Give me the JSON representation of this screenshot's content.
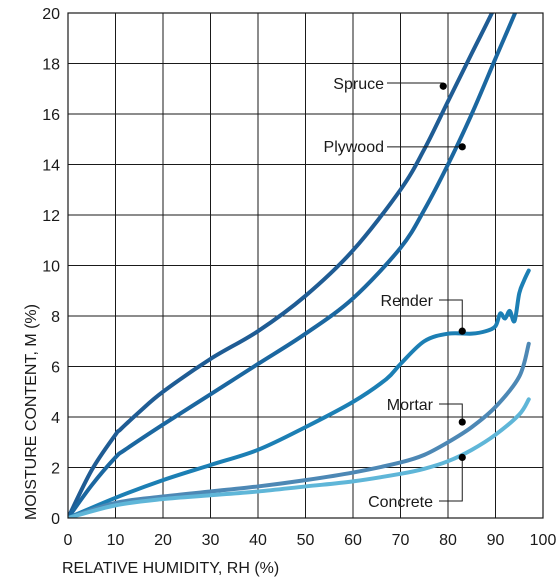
{
  "chart_data": {
    "type": "line",
    "xlabel": "RELATIVE HUMIDITY, RH (%)",
    "ylabel": "MOISTURE CONTENT, M (%)",
    "xlim": [
      0,
      100
    ],
    "ylim": [
      0,
      20
    ],
    "x_ticks": [
      0,
      10,
      20,
      30,
      40,
      50,
      60,
      70,
      80,
      90,
      100
    ],
    "y_ticks": [
      0,
      2,
      4,
      6,
      8,
      10,
      12,
      14,
      16,
      18,
      20
    ],
    "grid": true,
    "series": [
      {
        "name": "Spruce",
        "color": "#1f5c94",
        "x": [
          0,
          5,
          10,
          11,
          15,
          20,
          30,
          40,
          50,
          60,
          70,
          75,
          80,
          85,
          90,
          92.5
        ],
        "y": [
          0,
          1.9,
          3.3,
          3.5,
          4.2,
          5.0,
          6.3,
          7.4,
          8.8,
          10.6,
          13.0,
          14.6,
          16.5,
          18.4,
          20.3,
          21.5
        ]
      },
      {
        "name": "Plywood",
        "color": "#1b67a0",
        "x": [
          0,
          5,
          10,
          12,
          20,
          30,
          40,
          50,
          60,
          70,
          75,
          80,
          85,
          90,
          95,
          97
        ],
        "y": [
          0,
          1.3,
          2.4,
          2.7,
          3.7,
          4.9,
          6.1,
          7.3,
          8.7,
          10.7,
          12.2,
          14.0,
          16.0,
          18.2,
          20.4,
          21.5
        ]
      },
      {
        "name": "Render",
        "color": "#1c7fb4",
        "x": [
          0,
          10,
          20,
          30,
          40,
          50,
          60,
          67,
          70,
          75,
          80,
          85,
          88,
          90,
          91,
          92,
          93,
          94,
          95,
          96,
          97
        ],
        "y": [
          0,
          0.8,
          1.5,
          2.1,
          2.7,
          3.6,
          4.6,
          5.5,
          6.1,
          7.0,
          7.3,
          7.3,
          7.4,
          7.6,
          8.1,
          7.9,
          8.2,
          7.8,
          8.9,
          9.4,
          9.8
        ]
      },
      {
        "name": "Mortar",
        "color": "#4d88b5",
        "x": [
          0,
          10,
          20,
          30,
          40,
          50,
          60,
          70,
          75,
          80,
          85,
          90,
          95,
          97
        ],
        "y": [
          0,
          0.6,
          0.85,
          1.05,
          1.25,
          1.5,
          1.8,
          2.2,
          2.5,
          3.0,
          3.6,
          4.4,
          5.6,
          6.9
        ]
      },
      {
        "name": "Concrete",
        "color": "#5fb6d8",
        "x": [
          0,
          10,
          20,
          30,
          40,
          50,
          60,
          70,
          75,
          80,
          85,
          90,
          95,
          97
        ],
        "y": [
          0,
          0.5,
          0.75,
          0.9,
          1.05,
          1.25,
          1.45,
          1.75,
          1.95,
          2.25,
          2.7,
          3.3,
          4.1,
          4.7
        ]
      }
    ],
    "annotations": [
      {
        "label": "Spruce",
        "x": 79,
        "y": 17.1
      },
      {
        "label": "Plywood",
        "x": 83,
        "y": 14.7
      },
      {
        "label": "Render",
        "x": 83,
        "y": 7.4
      },
      {
        "label": "Mortar",
        "x": 83,
        "y": 3.8
      },
      {
        "label": "Concrete",
        "x": 83,
        "y": 2.4
      }
    ]
  }
}
